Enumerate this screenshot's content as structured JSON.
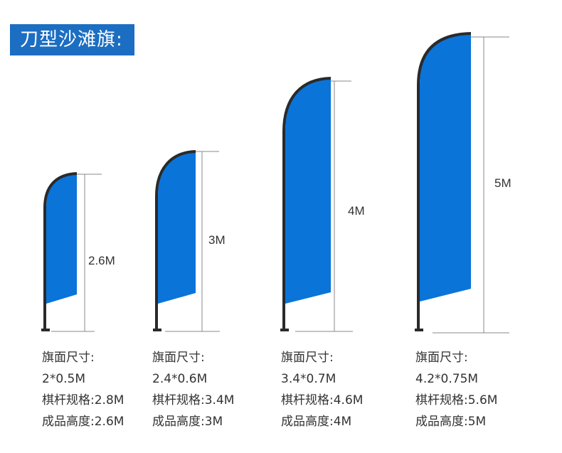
{
  "title": "刀型沙滩旗:",
  "colors": {
    "flag": "#0a74d9",
    "pole": "#2a2a2a",
    "title_bg": "#1c6ec2"
  },
  "flags": [
    {
      "dim_label": "2.6M",
      "flag_size_label": "旗面尺寸:",
      "flag_size": "2*0.5M",
      "pole_spec": "棋杆规格:2.8M",
      "height_spec": "成品高度:2.6M"
    },
    {
      "dim_label": "3M",
      "flag_size_label": "旗面尺寸:",
      "flag_size": "2.4*0.6M",
      "pole_spec": "棋杆规格:3.4M",
      "height_spec": "成品高度:3M"
    },
    {
      "dim_label": "4M",
      "flag_size_label": "旗面尺寸:",
      "flag_size": "3.4*0.7M",
      "pole_spec": "棋杆规格:4.6M",
      "height_spec": "成品高度:4M"
    },
    {
      "dim_label": "5M",
      "flag_size_label": "旗面尺寸:",
      "flag_size": "4.2*0.75M",
      "pole_spec": "棋杆规格:5.6M",
      "height_spec": "成品高度:5M"
    }
  ]
}
